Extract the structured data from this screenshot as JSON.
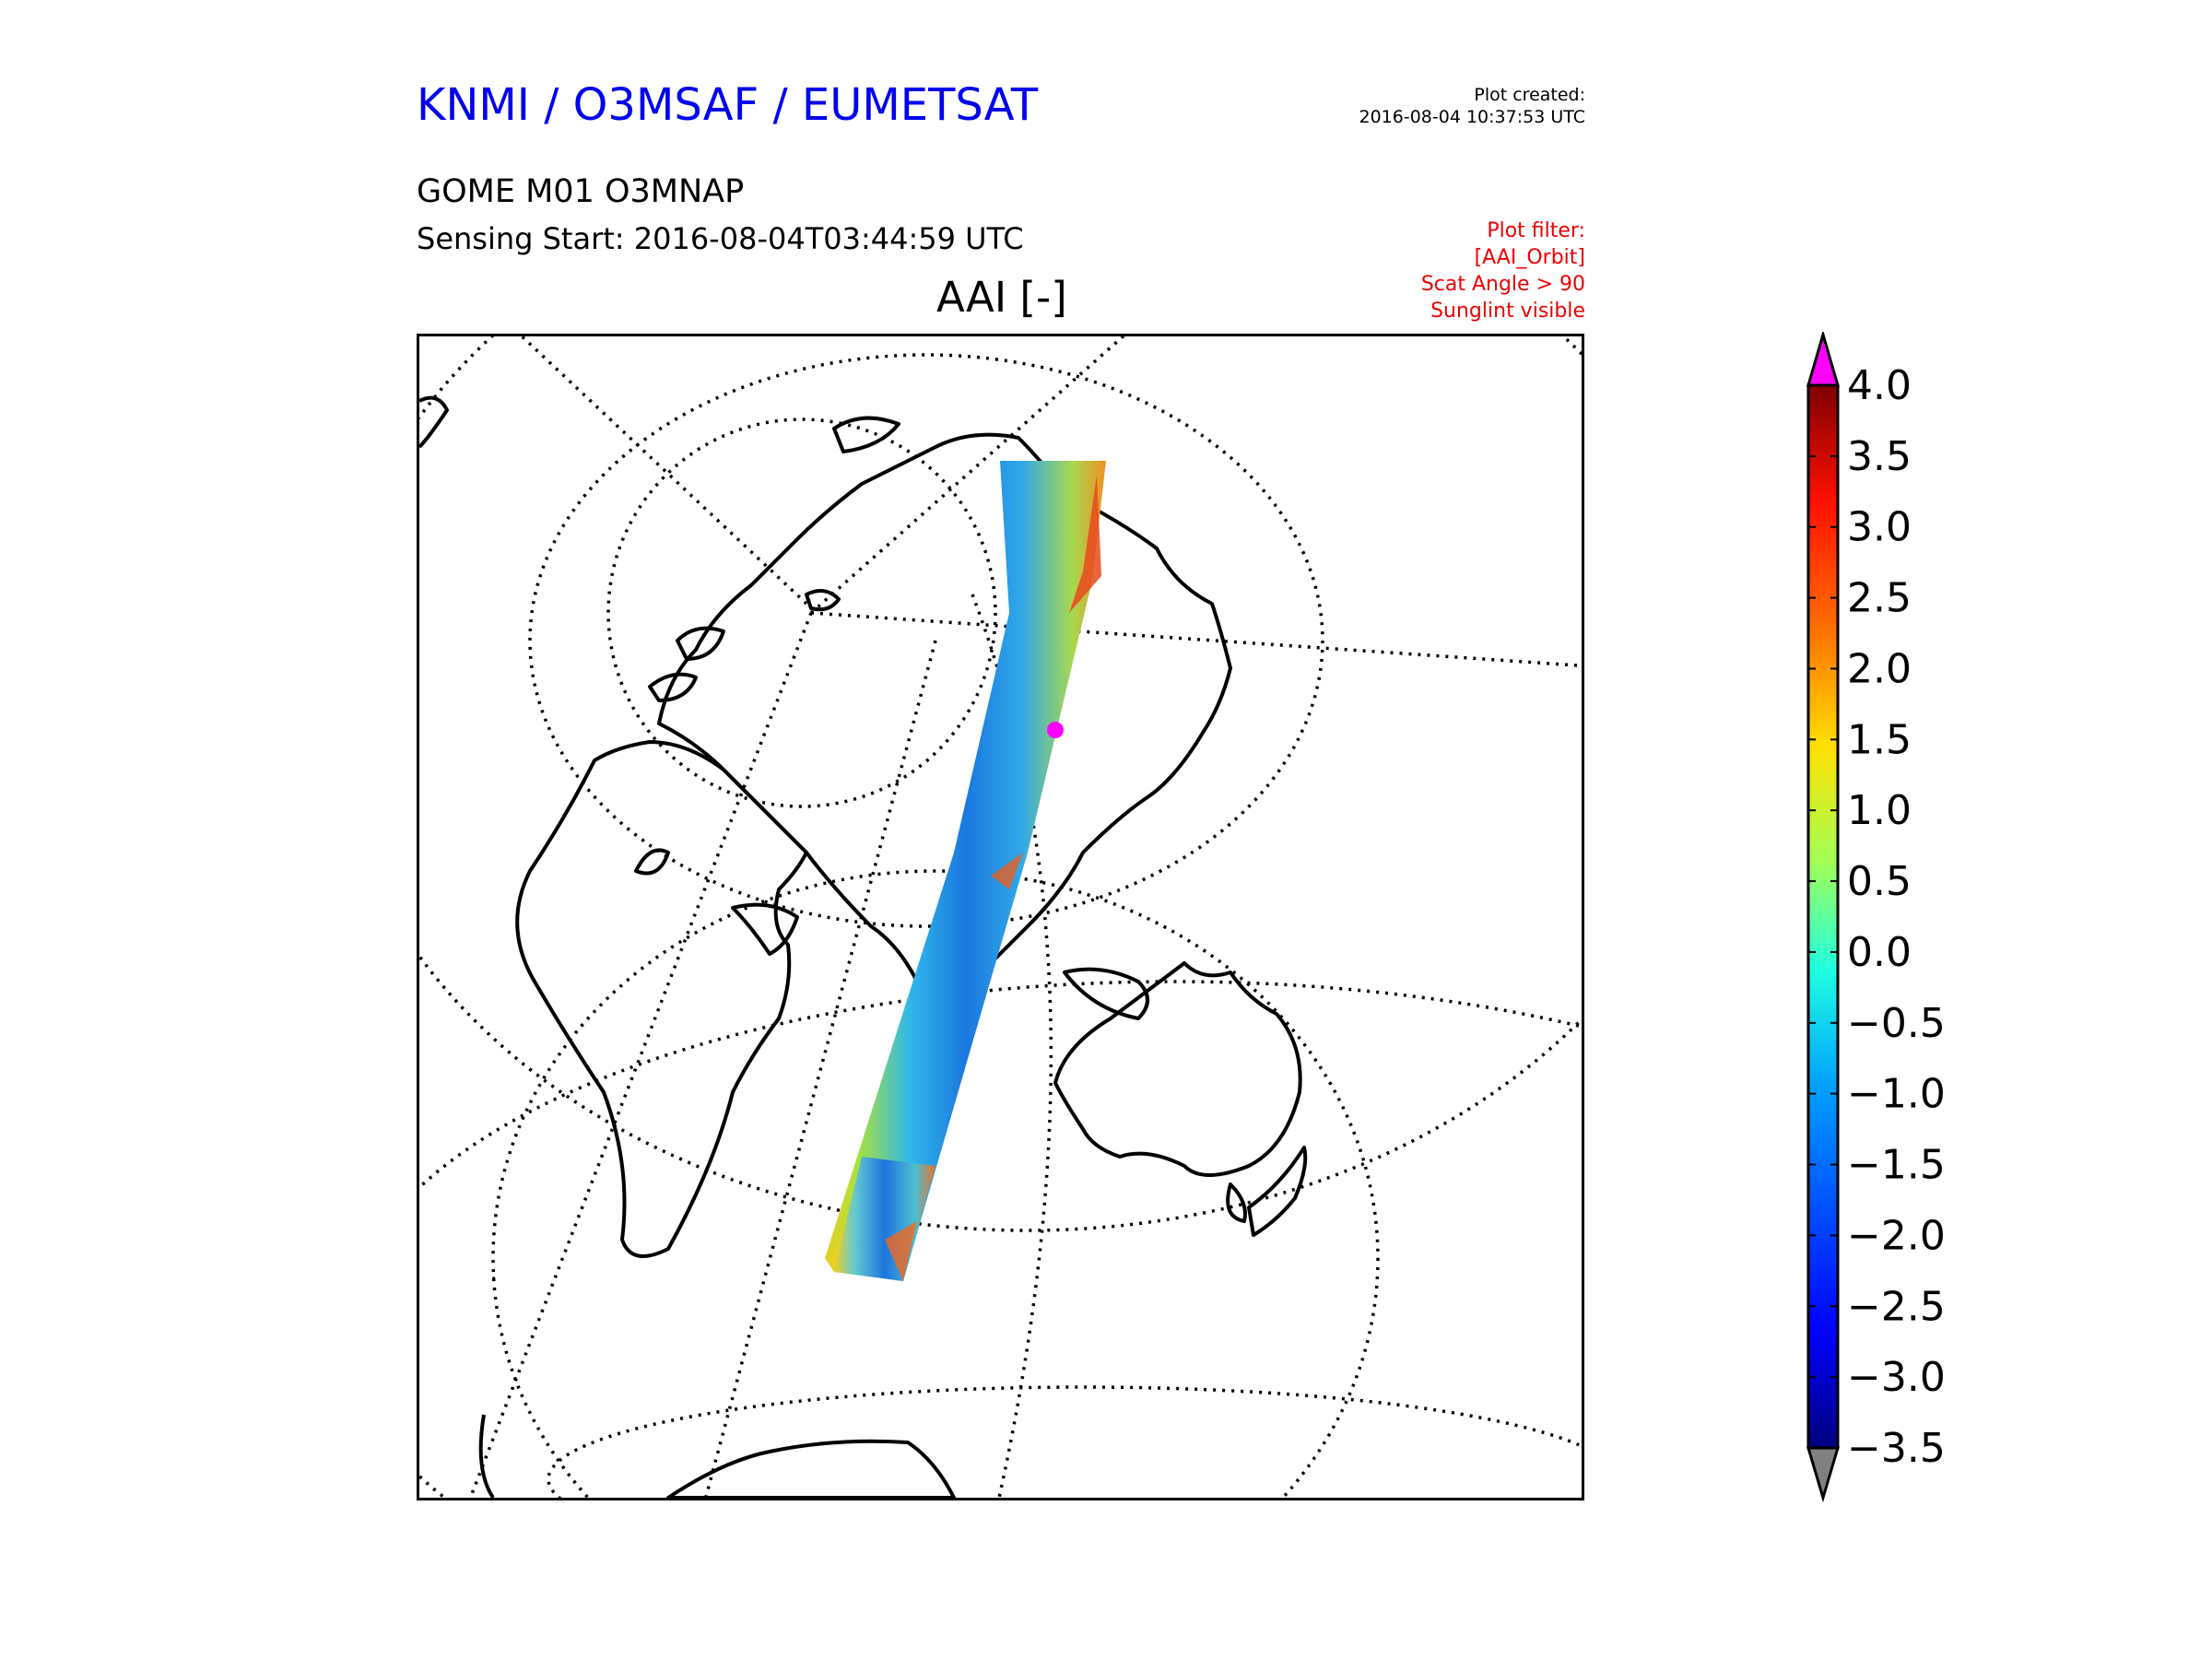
{
  "header": {
    "org_title": "KNMI / O3MSAF / EUMETSAT",
    "plot_created_label": "Plot created:",
    "plot_created_time": "2016-08-04 10:37:53 UTC",
    "product": "GOME M01 O3MNAP",
    "sensing_start": "Sensing Start: 2016-08-04T03:44:59 UTC",
    "filter_lines": [
      "Plot filter:",
      "[AAI_Orbit]",
      "Scat Angle > 90",
      "Sunglint visible"
    ],
    "variable_title": "AAI [-]"
  },
  "colors": {
    "org_title": "#0000ee",
    "filter_text": "#ee0000",
    "over_color": "#ff00ff",
    "under_color": "#808080"
  },
  "map": {
    "projection": "polar-centered globe view (Eurasia / Africa / Australia)",
    "features": [
      "coastlines",
      "graticule-dotted",
      "satellite-swath"
    ],
    "swath_variable": "AAI"
  },
  "colorbar": {
    "tick_labels": [
      "4.0",
      "3.5",
      "3.0",
      "2.5",
      "2.0",
      "1.5",
      "1.0",
      "0.5",
      "0.0",
      "−0.5",
      "−1.0",
      "−1.5",
      "−2.0",
      "−2.5",
      "−3.0",
      "−3.5"
    ],
    "min": -3.5,
    "max": 4.0,
    "colormap": "jet",
    "extend": "both"
  }
}
